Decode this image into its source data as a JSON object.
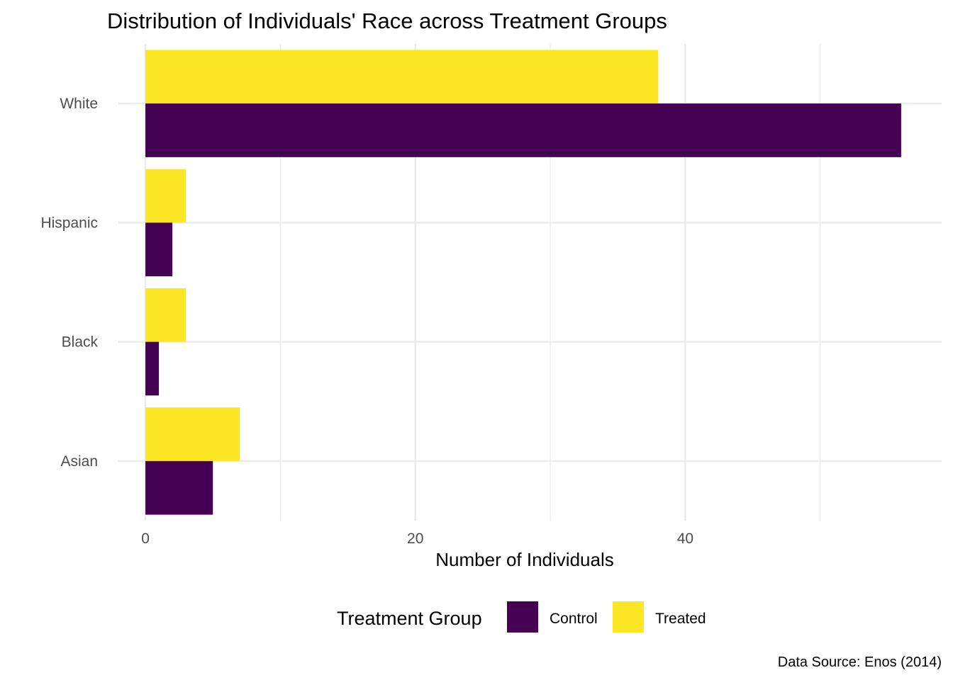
{
  "chart_data": {
    "type": "bar",
    "orientation": "horizontal",
    "title": "Distribution of Individuals' Race across Treatment Groups",
    "xlabel": "Number of Individuals",
    "ylabel": "",
    "categories": [
      "White",
      "Hispanic",
      "Black",
      "Asian"
    ],
    "series": [
      {
        "name": "Treated",
        "color": "#fde725",
        "values": [
          38,
          3,
          3,
          7
        ]
      },
      {
        "name": "Control",
        "color": "#440154",
        "values": [
          56,
          2,
          1,
          5
        ]
      }
    ],
    "xlim": [
      -2,
      59
    ],
    "x_ticks": [
      0,
      20,
      40
    ],
    "x_minor_ticks": [
      10,
      30,
      50
    ],
    "grid": true,
    "legend": {
      "title": "Treatment Group",
      "position": "bottom",
      "items": [
        {
          "label": "Control",
          "color": "#440154"
        },
        {
          "label": "Treated",
          "color": "#fde725"
        }
      ]
    },
    "caption": "Data Source: Enos (2014)"
  }
}
